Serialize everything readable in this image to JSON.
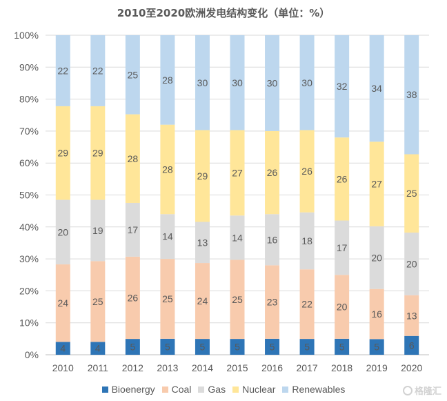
{
  "chart_data": {
    "type": "bar",
    "stacked": true,
    "title": "2010至2020欧洲发电结构变化（单位：%）",
    "categories": [
      "2010",
      "2011",
      "2012",
      "2013",
      "2014",
      "2015",
      "2016",
      "2017",
      "2018",
      "2019",
      "2020"
    ],
    "ylim": [
      0,
      100
    ],
    "yticks": [
      "0%",
      "10%",
      "20%",
      "30%",
      "40%",
      "50%",
      "60%",
      "70%",
      "80%",
      "90%",
      "100%"
    ],
    "grid": true,
    "legend_position": "bottom",
    "series": [
      {
        "name": "Bioenergy",
        "color": "#2e75b6",
        "values": [
          4,
          4,
          5,
          5,
          5,
          5,
          5,
          5,
          5,
          5,
          6
        ]
      },
      {
        "name": "Coal",
        "color": "#f8cbad",
        "values": [
          24,
          25,
          26,
          25,
          24,
          25,
          23,
          22,
          20,
          16,
          13
        ]
      },
      {
        "name": "Gas",
        "color": "#dbdbdb",
        "values": [
          20,
          19,
          17,
          14,
          13,
          14,
          16,
          18,
          17,
          20,
          20
        ]
      },
      {
        "name": "Nuclear",
        "color": "#ffe699",
        "values": [
          29,
          29,
          28,
          28,
          29,
          27,
          26,
          26,
          26,
          27,
          25
        ]
      },
      {
        "name": "Renewables",
        "color": "#bdd7ee",
        "values": [
          22,
          22,
          25,
          28,
          30,
          30,
          30,
          30,
          32,
          34,
          38
        ]
      }
    ]
  },
  "watermark": {
    "text": "格隆汇",
    "icon": "watermark-logo-icon"
  }
}
